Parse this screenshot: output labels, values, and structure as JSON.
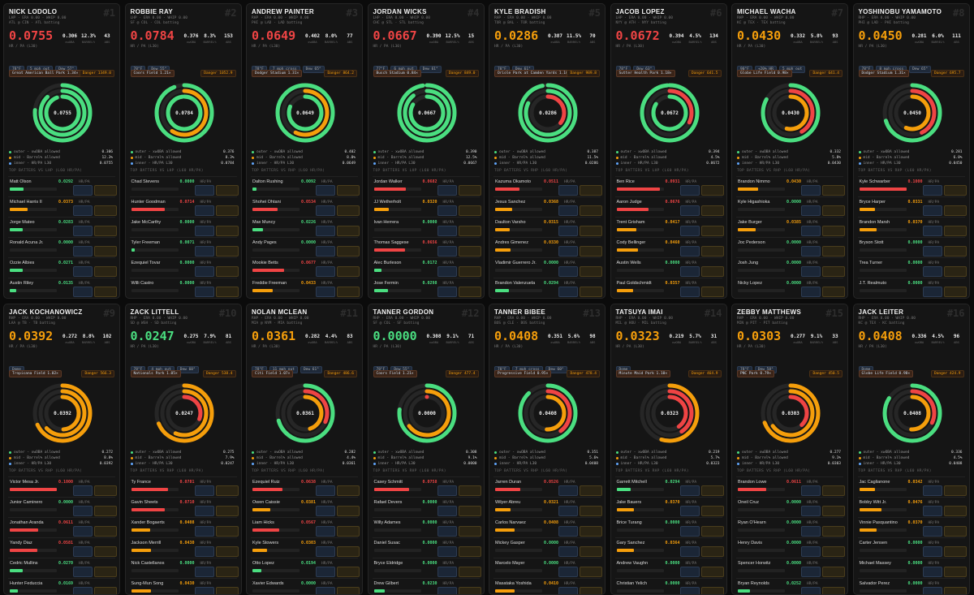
{
  "common": {
    "value_label": "HR / PA (L30)",
    "stat_labels": [
      "xwOBA",
      "BARREL%",
      "ABS"
    ],
    "legend": [
      "outer - xwOBA allowed",
      "mid - Barrel% allowed",
      "inner - HR/PA L30"
    ],
    "hr_unit": "HR/PA"
  },
  "cards": [
    {
      "rank": "#1",
      "name": "NICK LODOLO",
      "line1": "LHP · ERA 0.00 · WHIP 0.00",
      "line2": "ATL @ CIN · ATL batting",
      "hr_pa": "0.0755",
      "stats": [
        "0.306",
        "12.3%",
        "43"
      ],
      "chips": [
        "78°F",
        "5 mph out",
        "Dew 57°"
      ],
      "venue": "Great American Ball Park 1.34×",
      "danger": "Danger 1349.0",
      "section": "TOP BATTERS VS LHP (L60 HR/PA)",
      "batters": [
        {
          "name": "Matt Olson",
          "hr": "0.0292"
        },
        {
          "name": "Michael Harris II",
          "hr": "0.0373"
        },
        {
          "name": "Jorge Mateo",
          "hr": "0.0283"
        },
        {
          "name": "Ronald Acuna Jr.",
          "hr": "0.0000"
        },
        {
          "name": "Ozzie Albies",
          "hr": "0.0271"
        },
        {
          "name": "Austin Riley",
          "hr": "0.0135"
        }
      ]
    },
    {
      "rank": "#2",
      "name": "ROBBIE RAY",
      "line1": "LHP · ERA 0.00 · WHIP 0.00",
      "line2": "SF @ COL · COL batting",
      "hr_pa": "0.0784",
      "stats": [
        "0.376",
        "8.3%",
        "153"
      ],
      "chips": [
        "78°F",
        "Dew 55°"
      ],
      "venue": "Coors Field 1.21×",
      "danger": "Danger 1052.9",
      "section": "TOP BATTERS VS LHP (L60 HR/PA)",
      "batters": [
        {
          "name": "Chad Stevens",
          "hr": "0.0000"
        },
        {
          "name": "Hunter Goodman",
          "hr": "0.0714"
        },
        {
          "name": "Jake McCarthy",
          "hr": "0.0000"
        },
        {
          "name": "Tyler Freeman",
          "hr": "0.0071"
        },
        {
          "name": "Ezequiel Tovar",
          "hr": "0.0000"
        },
        {
          "name": "Willi Castro",
          "hr": "0.0000"
        }
      ]
    },
    {
      "rank": "#3",
      "name": "ANDREW PAINTER",
      "line1": "RHP · ERA 0.00 · WHIP 0.00",
      "line2": "PHI @ LAD · LAD batting",
      "hr_pa": "0.0649",
      "stats": [
        "0.402",
        "8.0%",
        "77"
      ],
      "chips": [
        "78°F",
        "7 mph cross",
        "Dew 65°"
      ],
      "venue": "Dodger Stadium 1.31×",
      "danger": "Danger 864.2",
      "section": "TOP BATTERS VS RHP (L60 HR/PA)",
      "batters": [
        {
          "name": "Dalton Rushing",
          "hr": "0.0092"
        },
        {
          "name": "Shohei Ohtani",
          "hr": "0.0534"
        },
        {
          "name": "Max Muncy",
          "hr": "0.0226"
        },
        {
          "name": "Andy Pages",
          "hr": "0.0000"
        },
        {
          "name": "Mookie Betts",
          "hr": "0.0677"
        },
        {
          "name": "Freddie Freeman",
          "hr": "0.0433"
        }
      ]
    },
    {
      "rank": "#4",
      "name": "JORDAN WICKS",
      "line1": "LHP · ERA 0.00 · WHIP 0.00",
      "line2": "CHC @ STL · STL batting",
      "hr_pa": "0.0667",
      "stats": [
        "0.390",
        "12.5%",
        "15"
      ],
      "chips": [
        "77°F",
        "6 mph out",
        "Dew 61°"
      ],
      "venue": "Busch Stadium 0.84×",
      "danger": "Danger 849.0",
      "section": "TOP BATTERS VS LHP (L60 HR/PA)",
      "batters": [
        {
          "name": "Jordan Walker",
          "hr": "0.0682"
        },
        {
          "name": "JJ Wetherholt",
          "hr": "0.0320"
        },
        {
          "name": "Ivan Herrera",
          "hr": "0.0000"
        },
        {
          "name": "Thomas Saggese",
          "hr": "0.0656"
        },
        {
          "name": "Alec Burleson",
          "hr": "0.0172"
        },
        {
          "name": "Jose Fermin",
          "hr": "0.0298"
        }
      ]
    },
    {
      "rank": "#5",
      "name": "KYLE BRADISH",
      "line1": "RHP · ERA 0.00 · WHIP 0.00",
      "line2": "TOR @ BAL · TOR batting",
      "hr_pa": "0.0286",
      "stats": [
        "0.387",
        "11.5%",
        "70"
      ],
      "chips": [
        "78°F",
        "Dew 61°"
      ],
      "venue": "Oriole Park at Camden Yards 1.10×",
      "danger": "Danger 989.8",
      "section": "TOP BATTERS VS RHP (L60 HR/PA)",
      "batters": [
        {
          "name": "Kazuma Okamoto",
          "hr": "0.0511"
        },
        {
          "name": "Jesus Sanchez",
          "hr": "0.0368"
        },
        {
          "name": "Daulton Varsho",
          "hr": "0.0315"
        },
        {
          "name": "Andres Gimenez",
          "hr": "0.0330"
        },
        {
          "name": "Vladimir Guerrero Jr.",
          "hr": "0.0000"
        },
        {
          "name": "Brandon Valenzuela",
          "hr": "0.0294"
        }
      ]
    },
    {
      "rank": "#6",
      "name": "JACOB LOPEZ",
      "line1": "LHP · ERA 0.00 · WHIP 0.00",
      "line2": "NYY @ ATH · NYY batting",
      "hr_pa": "0.0672",
      "stats": [
        "0.394",
        "4.5%",
        "134"
      ],
      "chips": [
        "78°F",
        "Dew 63°"
      ],
      "venue": "Sutter Health Park 1.18×",
      "danger": "Danger 641.5",
      "section": "TOP BATTERS VS LHP (L60 HR/PA)",
      "batters": [
        {
          "name": "Ben Rice",
          "hr": "0.0931"
        },
        {
          "name": "Aaron Judge",
          "hr": "0.0676"
        },
        {
          "name": "Trent Grisham",
          "hr": "0.0417"
        },
        {
          "name": "Cody Bellinger",
          "hr": "0.0460"
        },
        {
          "name": "Austin Wells",
          "hr": "0.0000"
        },
        {
          "name": "Paul Goldschmidt",
          "hr": "0.0357"
        }
      ]
    },
    {
      "rank": "#7",
      "name": "MICHAEL WACHA",
      "line1": "RHP · ERA 0.00 · WHIP 0.00",
      "line2": "KC @ TEX · TEX batting",
      "hr_pa": "0.0430",
      "stats": [
        "0.332",
        "5.8%",
        "93"
      ],
      "chips": [
        "90°F",
        "+20% HR",
        "5 mph out"
      ],
      "venue": "Globe Life Field 0.98×",
      "danger": "Danger 641.4",
      "section": "TOP BATTERS VS RHP (L60 HR/PA)",
      "batters": [
        {
          "name": "Brandon Nimmo",
          "hr": "0.0430"
        },
        {
          "name": "Kyle Higashioka",
          "hr": "0.0000"
        },
        {
          "name": "Jake Burger",
          "hr": "0.0385"
        },
        {
          "name": "Joc Pederson",
          "hr": "0.0000"
        },
        {
          "name": "Josh Jung",
          "hr": "0.0000"
        },
        {
          "name": "Nicky Lopez",
          "hr": "0.0000"
        }
      ]
    },
    {
      "rank": "#8",
      "name": "YOSHINOBU YAMAMOTO",
      "line1": "RHP · ERA 0.00 · WHIP 0.00",
      "line2": "PHI @ LAD · PHI batting",
      "hr_pa": "0.0450",
      "stats": [
        "0.281",
        "6.0%",
        "111"
      ],
      "chips": [
        "78°F",
        "8 mph cross",
        "Dew 65°"
      ],
      "venue": "Dodger Stadium 1.31×",
      "danger": "Danger 695.7",
      "section": "TOP BATTERS VS RHP (L60 HR/PA)",
      "batters": [
        {
          "name": "Kyle Schwarber",
          "hr": "0.1000"
        },
        {
          "name": "Bryce Harper",
          "hr": "0.0331"
        },
        {
          "name": "Brandon Marsh",
          "hr": "0.0370"
        },
        {
          "name": "Bryson Stott",
          "hr": "0.0000"
        },
        {
          "name": "Trea Turner",
          "hr": "0.0000"
        },
        {
          "name": "J.T. Realmuto",
          "hr": "0.0000"
        }
      ]
    },
    {
      "rank": "#9",
      "name": "JACK KOCHANOWICZ",
      "line1": "RHP · ERA 0.00 · WHIP 0.00",
      "line2": "LAA @ TB · TB batting",
      "hr_pa": "0.0392",
      "stats": [
        "0.272",
        "8.8%",
        "102"
      ],
      "chips": [
        "Dome"
      ],
      "venue": "Tropicana Field 1.02×",
      "danger": "Danger 566.3",
      "section": "TOP BATTERS VS RHP (L60 HR/PA)",
      "batters": [
        {
          "name": "Victor Mesa Jr.",
          "hr": "0.1000"
        },
        {
          "name": "Junior Caminero",
          "hr": "0.0000"
        },
        {
          "name": "Jonathan Aranda",
          "hr": "0.0611"
        },
        {
          "name": "Yandy Diaz",
          "hr": "0.0581"
        },
        {
          "name": "Cedric Mullins",
          "hr": "0.0270"
        },
        {
          "name": "Hunter Feduccia",
          "hr": "0.0169"
        }
      ]
    },
    {
      "rank": "#10",
      "name": "ZACK LITTELL",
      "line1": "RHP · ERA 0.00 · WHIP 0.00",
      "line2": "SD @ WSH · SD batting",
      "hr_pa": "0.0247",
      "stats": [
        "0.275",
        "7.9%",
        "81"
      ],
      "chips": [
        "78°F",
        "4 mph out",
        "Dew 60°"
      ],
      "venue": "Nationals Park 1.05×",
      "danger": "Danger 538.4",
      "section": "TOP BATTERS VS RHP (L60 HR/PA)",
      "batters": [
        {
          "name": "Ty France",
          "hr": "0.0781"
        },
        {
          "name": "Gavin Sheets",
          "hr": "0.0710"
        },
        {
          "name": "Xander Bogaerts",
          "hr": "0.0408"
        },
        {
          "name": "Jackson Merrill",
          "hr": "0.0430"
        },
        {
          "name": "Nick Castellanos",
          "hr": "0.0000"
        },
        {
          "name": "Sung-Mun Song",
          "hr": "0.0430"
        }
      ]
    },
    {
      "rank": "#11",
      "name": "NOLAN MCLEAN",
      "line1": "RHP · ERA 0.00 · WHIP 0.00",
      "line2": "MIA @ NYM · MIA batting",
      "hr_pa": "0.0361",
      "stats": [
        "0.282",
        "4.4%",
        "83"
      ],
      "chips": [
        "78°F",
        "11 mph out",
        "Dew 61°"
      ],
      "venue": "Citi Field 1.07×",
      "danger": "Danger 486.6",
      "section": "TOP BATTERS VS RHP (L60 HR/PA)",
      "batters": [
        {
          "name": "Ezequiel Ruiz",
          "hr": "0.0638"
        },
        {
          "name": "Owen Caissie",
          "hr": "0.0381"
        },
        {
          "name": "Liam Hicks",
          "hr": "0.0567"
        },
        {
          "name": "Kyle Stowers",
          "hr": "0.0303"
        },
        {
          "name": "Otto Lopez",
          "hr": "0.0194"
        },
        {
          "name": "Xavier Edwards",
          "hr": "0.0000"
        }
      ]
    },
    {
      "rank": "#12",
      "name": "TANNER GORDON",
      "line1": "RHP · ERA 0.00 · WHIP 0.00",
      "line2": "SF @ COL · SF batting",
      "hr_pa": "0.0000",
      "stats": [
        "0.308",
        "9.1%",
        "71"
      ],
      "chips": [
        "78°F",
        "Dew 55°"
      ],
      "venue": "Coors Field 1.21×",
      "danger": "Danger 477.4",
      "section": "TOP BATTERS VS RHP (L60 HR/PA)",
      "batters": [
        {
          "name": "Casey Schmitt",
          "hr": "0.0758"
        },
        {
          "name": "Rafael Devers",
          "hr": "0.0000"
        },
        {
          "name": "Willy Adames",
          "hr": "0.0000"
        },
        {
          "name": "Daniel Susac",
          "hr": "0.0000"
        },
        {
          "name": "Bryce Eldridge",
          "hr": "0.0000"
        },
        {
          "name": "Drew Gilbert",
          "hr": "0.0230"
        }
      ]
    },
    {
      "rank": "#13",
      "name": "TANNER BIBEE",
      "line1": "RHP · ERA 0.00 · WHIP 0.00",
      "line2": "BOS @ CLE · BOS batting",
      "hr_pa": "0.0408",
      "stats": [
        "0.351",
        "5.6%",
        "98"
      ],
      "chips": [
        "78°F",
        "7 mph cross",
        "Dew 60°"
      ],
      "venue": "Progressive Field 0.95×",
      "danger": "Danger 478.4",
      "section": "TOP BATTERS VS RHP (L60 HR/PA)",
      "batters": [
        {
          "name": "Jarren Duran",
          "hr": "0.0526"
        },
        {
          "name": "Wilyer Abreu",
          "hr": "0.0321"
        },
        {
          "name": "Carlos Narvaez",
          "hr": "0.0408"
        },
        {
          "name": "Mickey Gasper",
          "hr": "0.0000"
        },
        {
          "name": "Marcelo Mayer",
          "hr": "0.0000"
        },
        {
          "name": "Masataka Yoshida",
          "hr": "0.0410"
        }
      ]
    },
    {
      "rank": "#14",
      "name": "TATSUYA IMAI",
      "line1": "RHP · ERA 0.00 · WHIP 0.00",
      "line2": "MIL @ HOU · MIL batting",
      "hr_pa": "0.0323",
      "stats": [
        "0.219",
        "5.7%",
        "31"
      ],
      "chips": [
        "Dome"
      ],
      "venue": "Minute Maid Park 1.10×",
      "danger": "Danger 464.9",
      "section": "TOP BATTERS VS RHP (L60 HR/PA)",
      "batters": [
        {
          "name": "Garrett Mitchell",
          "hr": "0.0294"
        },
        {
          "name": "Jake Bauers",
          "hr": "0.0370"
        },
        {
          "name": "Brice Turang",
          "hr": "0.0000"
        },
        {
          "name": "Gary Sanchez",
          "hr": "0.0364"
        },
        {
          "name": "Andrew Vaughn",
          "hr": "0.0000"
        },
        {
          "name": "Christian Yelich",
          "hr": "0.0000"
        }
      ]
    },
    {
      "rank": "#15",
      "name": "ZEBBY MATTHEWS",
      "line1": "RHP · ERA 0.00 · WHIP 0.00",
      "line2": "MIN @ PIT · PIT batting",
      "hr_pa": "0.0303",
      "stats": [
        "0.277",
        "9.1%",
        "33"
      ],
      "chips": [
        "78°F",
        "Dew 58°"
      ],
      "venue": "PNC Park 0.79×",
      "danger": "Danger 450.5",
      "section": "TOP BATTERS VS RHP (L60 HR/PA)",
      "batters": [
        {
          "name": "Brandon Lowe",
          "hr": "0.0611"
        },
        {
          "name": "Oneil Cruz",
          "hr": "0.0000"
        },
        {
          "name": "Ryan O'Hearn",
          "hr": "0.0000"
        },
        {
          "name": "Henry Davis",
          "hr": "0.0000"
        },
        {
          "name": "Spencer Horwitz",
          "hr": "0.0000"
        },
        {
          "name": "Bryan Reynolds",
          "hr": "0.0252"
        }
      ]
    },
    {
      "rank": "#16",
      "name": "JACK LEITER",
      "line1": "RHP · ERA 0.00 · WHIP 0.00",
      "line2": "KC @ TEX · KC batting",
      "hr_pa": "0.0408",
      "stats": [
        "0.336",
        "4.5%",
        "96"
      ],
      "chips": [
        "Dome"
      ],
      "venue": "Globe Life Field 0.98×",
      "danger": "Danger 424.9",
      "section": "TOP BATTERS VS RHP (L60 HR/PA)",
      "batters": [
        {
          "name": "Jac Caglianone",
          "hr": "0.0342"
        },
        {
          "name": "Bobby Witt Jr.",
          "hr": "0.0476"
        },
        {
          "name": "Vinnie Pasquantino",
          "hr": "0.0370"
        },
        {
          "name": "Carter Jensen",
          "hr": "0.0000"
        },
        {
          "name": "Michael Massey",
          "hr": "0.0000"
        },
        {
          "name": "Salvador Perez",
          "hr": "0.0000"
        }
      ]
    }
  ]
}
